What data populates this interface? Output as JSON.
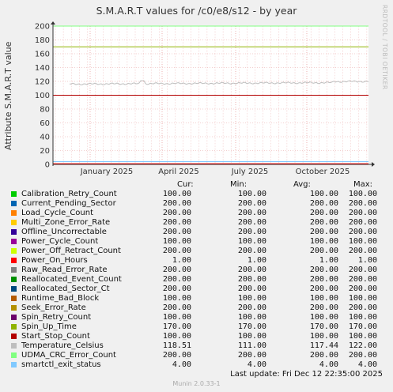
{
  "chart_data": {
    "type": "line",
    "title": "S.M.A.R.T values for /c0/e8/s12 - by year",
    "ylabel": "Attribute S.M.A.R.T value",
    "ylim": [
      0,
      200
    ],
    "yticks": [
      0,
      20,
      40,
      60,
      80,
      100,
      120,
      140,
      160,
      180,
      200
    ],
    "xtick_labels": [
      "January 2025",
      "April 2025",
      "July 2025",
      "October 2025"
    ],
    "grid": true,
    "legend_headers": {
      "cur": "Cur:",
      "min": "Min:",
      "avg": "Avg:",
      "max": "Max:"
    },
    "series": [
      {
        "name": "Calibration_Retry_Count",
        "color": "#00cc00",
        "cur": "100.00",
        "min": "100.00",
        "avg": "100.00",
        "max": "100.00",
        "value": 100
      },
      {
        "name": "Current_Pending_Sector",
        "color": "#0066b3",
        "cur": "200.00",
        "min": "200.00",
        "avg": "200.00",
        "max": "200.00",
        "value": 200
      },
      {
        "name": "Load_Cycle_Count",
        "color": "#ff8000",
        "cur": "200.00",
        "min": "200.00",
        "avg": "200.00",
        "max": "200.00",
        "value": 200
      },
      {
        "name": "Multi_Zone_Error_Rate",
        "color": "#ffcc00",
        "cur": "200.00",
        "min": "200.00",
        "avg": "200.00",
        "max": "200.00",
        "value": 200
      },
      {
        "name": "Offline_Uncorrectable",
        "color": "#330099",
        "cur": "200.00",
        "min": "200.00",
        "avg": "200.00",
        "max": "200.00",
        "value": 200
      },
      {
        "name": "Power_Cycle_Count",
        "color": "#990099",
        "cur": "100.00",
        "min": "100.00",
        "avg": "100.00",
        "max": "100.00",
        "value": 100
      },
      {
        "name": "Power_Off_Retract_Count",
        "color": "#ccff00",
        "cur": "200.00",
        "min": "200.00",
        "avg": "200.00",
        "max": "200.00",
        "value": 200
      },
      {
        "name": "Power_On_Hours",
        "color": "#ff0000",
        "cur": "1.00",
        "min": "1.00",
        "avg": "1.00",
        "max": "1.00",
        "value": 1
      },
      {
        "name": "Raw_Read_Error_Rate",
        "color": "#808080",
        "cur": "200.00",
        "min": "200.00",
        "avg": "200.00",
        "max": "200.00",
        "value": 200
      },
      {
        "name": "Reallocated_Event_Count",
        "color": "#008f00",
        "cur": "200.00",
        "min": "200.00",
        "avg": "200.00",
        "max": "200.00",
        "value": 200
      },
      {
        "name": "Reallocated_Sector_Ct",
        "color": "#00487d",
        "cur": "200.00",
        "min": "200.00",
        "avg": "200.00",
        "max": "200.00",
        "value": 200
      },
      {
        "name": "Runtime_Bad_Block",
        "color": "#b35a00",
        "cur": "100.00",
        "min": "100.00",
        "avg": "100.00",
        "max": "100.00",
        "value": 100
      },
      {
        "name": "Seek_Error_Rate",
        "color": "#b38f00",
        "cur": "200.00",
        "min": "200.00",
        "avg": "200.00",
        "max": "200.00",
        "value": 200
      },
      {
        "name": "Spin_Retry_Count",
        "color": "#6b006b",
        "cur": "100.00",
        "min": "100.00",
        "avg": "100.00",
        "max": "100.00",
        "value": 100
      },
      {
        "name": "Spin_Up_Time",
        "color": "#8fb300",
        "cur": "170.00",
        "min": "170.00",
        "avg": "170.00",
        "max": "170.00",
        "value": 170
      },
      {
        "name": "Start_Stop_Count",
        "color": "#b30000",
        "cur": "100.00",
        "min": "100.00",
        "avg": "100.00",
        "max": "100.00",
        "value": 100
      },
      {
        "name": "Temperature_Celsius",
        "color": "#bebebe",
        "cur": "118.51",
        "min": "111.00",
        "avg": "117.44",
        "max": "122.00",
        "value": 117.44
      },
      {
        "name": "UDMA_CRC_Error_Count",
        "color": "#80ff80",
        "cur": "200.00",
        "min": "200.00",
        "avg": "200.00",
        "max": "200.00",
        "value": 200
      },
      {
        "name": "smartctl_exit_status",
        "color": "#80c9ff",
        "cur": "4.00",
        "min": "4.00",
        "avg": "4.00",
        "max": "4.00",
        "value": 4
      }
    ]
  },
  "footer": {
    "last_update": "Last update:  Fri Dec 12 22:35:00 2025",
    "munin": "Munin 2.0.33-1"
  },
  "side_label": "RRDTOOL / TOBI OETIKER"
}
